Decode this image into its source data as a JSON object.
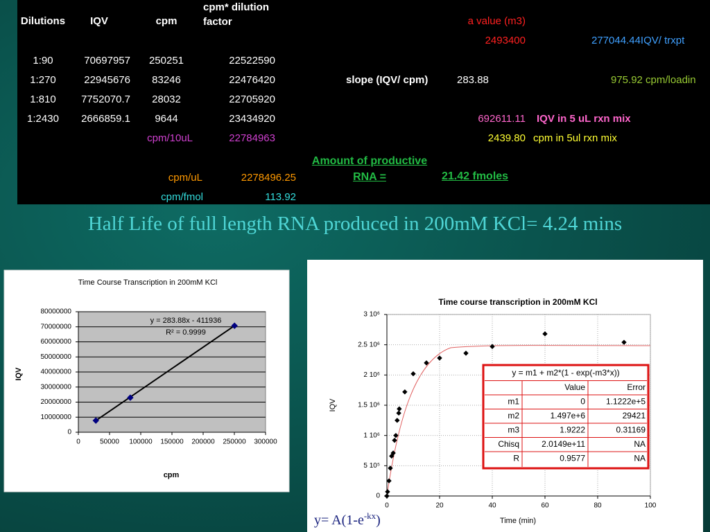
{
  "sheet": {
    "headers": [
      "Dilutions",
      "IQV",
      "cpm",
      "cpm* dilution factor"
    ],
    "rows": [
      [
        "1:90",
        "70697957",
        "250251",
        "22522590"
      ],
      [
        "1:270",
        "22945676",
        "83246",
        "22476420"
      ],
      [
        "1:810",
        "7752070.7",
        "28032",
        "22705920"
      ],
      [
        "1:2430",
        "2666859.1",
        "9644",
        "23434920"
      ]
    ],
    "a_value_label": "a value (m3)",
    "a_value": "2493400",
    "iqv_per_trxpt": "277044.44IQV/ trxpt",
    "slope_label": "slope (IQV/ cpm)",
    "slope": "283.88",
    "cpm_loading": "975.92  cpm/loadin",
    "iqv_5ul": "692611.11",
    "iqv_5ul_label": "IQV in 5 uL rxn mix",
    "cpm_5ul": "2439.80",
    "cpm_5ul_label": "cpm in 5ul rxn mix",
    "cpm_10ul_label": "cpm/10uL",
    "cpm_10ul": "22784963",
    "cpm_ul_label": "cpm/uL",
    "cpm_ul": "2278496.25",
    "amount_label": "Amount of productive RNA =",
    "amount": "21.42 fmoles",
    "cpm_fmol_label": "cpm/fmol",
    "cpm_fmol": "113.92"
  },
  "headline": "Half Life of full length RNA produced in 200mM KCl= 4.24 mins",
  "chart_data": [
    {
      "type": "scatter",
      "title": "Time Course Transcription in 200mM KCl",
      "x_label": "cpm",
      "y_label": "IQV",
      "x": [
        28032,
        83246,
        250251
      ],
      "values": [
        7752070.7,
        22945676,
        70697957
      ],
      "color": "#000080",
      "xlim": [
        0,
        300000
      ],
      "xticks": [
        0,
        50000,
        100000,
        150000,
        200000,
        250000,
        300000
      ],
      "ylim": [
        0,
        80000000
      ],
      "yticks": [
        0,
        10000000,
        20000000,
        30000000,
        40000000,
        50000000,
        60000000,
        70000000,
        80000000
      ],
      "grid": true,
      "trendline": true,
      "annotations": [
        "y = 283.88x - 411936",
        "R² = 0.9999"
      ]
    },
    {
      "type": "scatter",
      "title": "Time course transcription in 200mM KCl",
      "x_label": "Time (min)",
      "y_label": "IQV",
      "x": [
        0,
        0.25,
        0.8,
        1.3,
        1.8,
        2.4,
        2.9,
        3.4,
        3.9,
        4.5,
        4.7,
        6.8,
        10,
        15,
        20,
        30,
        40,
        60,
        90
      ],
      "values": [
        0,
        70000,
        250000,
        460000,
        660000,
        710000,
        920000,
        1000000,
        1250000,
        1370000,
        1440000,
        1720000,
        2020000,
        2200000,
        2280000,
        2360000,
        2470000,
        2680000,
        2540000
      ],
      "color": "#000000",
      "xlim": [
        0,
        100
      ],
      "xticks": [
        0,
        20,
        40,
        60,
        80,
        100
      ],
      "ylim": [
        0,
        3000000
      ],
      "yticks": [
        0,
        {
          "value": 500000,
          "label": "5 10⁵"
        },
        {
          "value": 1000000,
          "label": "1 10⁶"
        },
        {
          "value": 1500000,
          "label": "1.5 10⁶"
        },
        {
          "value": 2000000,
          "label": "2 10⁶"
        },
        {
          "value": 2500000,
          "label": "2.5 10⁶"
        },
        {
          "value": 3000000,
          "label": "3 10⁶"
        }
      ],
      "grid": true,
      "fit_table": {
        "equation": "y = m1 + m2*(1 - exp(-m3*x))",
        "columns": [
          "Value",
          "Error"
        ],
        "rows": [
          [
            "m1",
            "0",
            "1.1222e+5"
          ],
          [
            "m2",
            "1.497e+6",
            "29421"
          ],
          [
            "m3",
            "1.9222",
            "0.31169"
          ],
          [
            "Chisq",
            "2.0149e+11",
            "NA"
          ],
          [
            "R",
            "0.9577",
            "NA"
          ]
        ]
      }
    }
  ],
  "formula": {
    "base": "y= A(1-e",
    "exponent": "-kx",
    "close": ")"
  }
}
